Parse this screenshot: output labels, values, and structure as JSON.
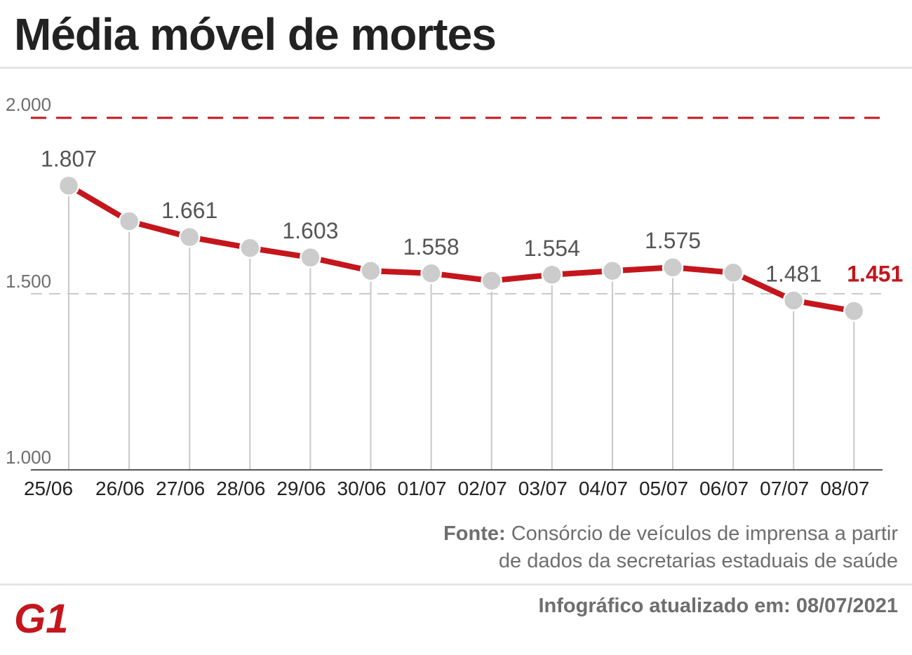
{
  "title": "Média móvel de mortes",
  "source_label": "Fonte:",
  "source_line1": "Consórcio de veículos de imprensa a partir",
  "source_line2": "de dados da secretarias estaduais de saúde",
  "updated": "Infográfico atualizado em: 08/07/2021",
  "logo_text": "G1",
  "colors": {
    "line": "#c4161c",
    "marker": "#cccccc",
    "text": "#222222",
    "muted": "#6e6e6e",
    "highlight": "#c4161c"
  },
  "chart_data": {
    "type": "line",
    "title": "",
    "xlabel": "",
    "ylabel": "",
    "categories": [
      "25/06",
      "26/06",
      "27/06",
      "28/06",
      "29/06",
      "30/06",
      "01/07",
      "02/07",
      "03/07",
      "04/07",
      "05/07",
      "06/07",
      "07/07",
      "08/07"
    ],
    "values": [
      1807,
      1706,
      1661,
      1630,
      1603,
      1565,
      1558,
      1537,
      1554,
      1565,
      1575,
      1560,
      1481,
      1451
    ],
    "labels": [
      "1.807",
      "",
      "1.661",
      "",
      "1.603",
      "",
      "1.558",
      "",
      "1.554",
      "",
      "1.575",
      "",
      "1.481",
      "1.451"
    ],
    "ylim": [
      1000,
      2000
    ],
    "yticks": [
      {
        "value": 2000,
        "label": "2.000"
      },
      {
        "value": 1500,
        "label": "1.500"
      },
      {
        "value": 1000,
        "label": "1.000"
      }
    ],
    "reference_lines": [
      {
        "value": 1960,
        "style": "dashed",
        "color": "#c4161c"
      },
      {
        "value": 1500,
        "style": "dashed",
        "color": "#bbbbbb"
      }
    ],
    "grid": false,
    "legend": "none"
  }
}
